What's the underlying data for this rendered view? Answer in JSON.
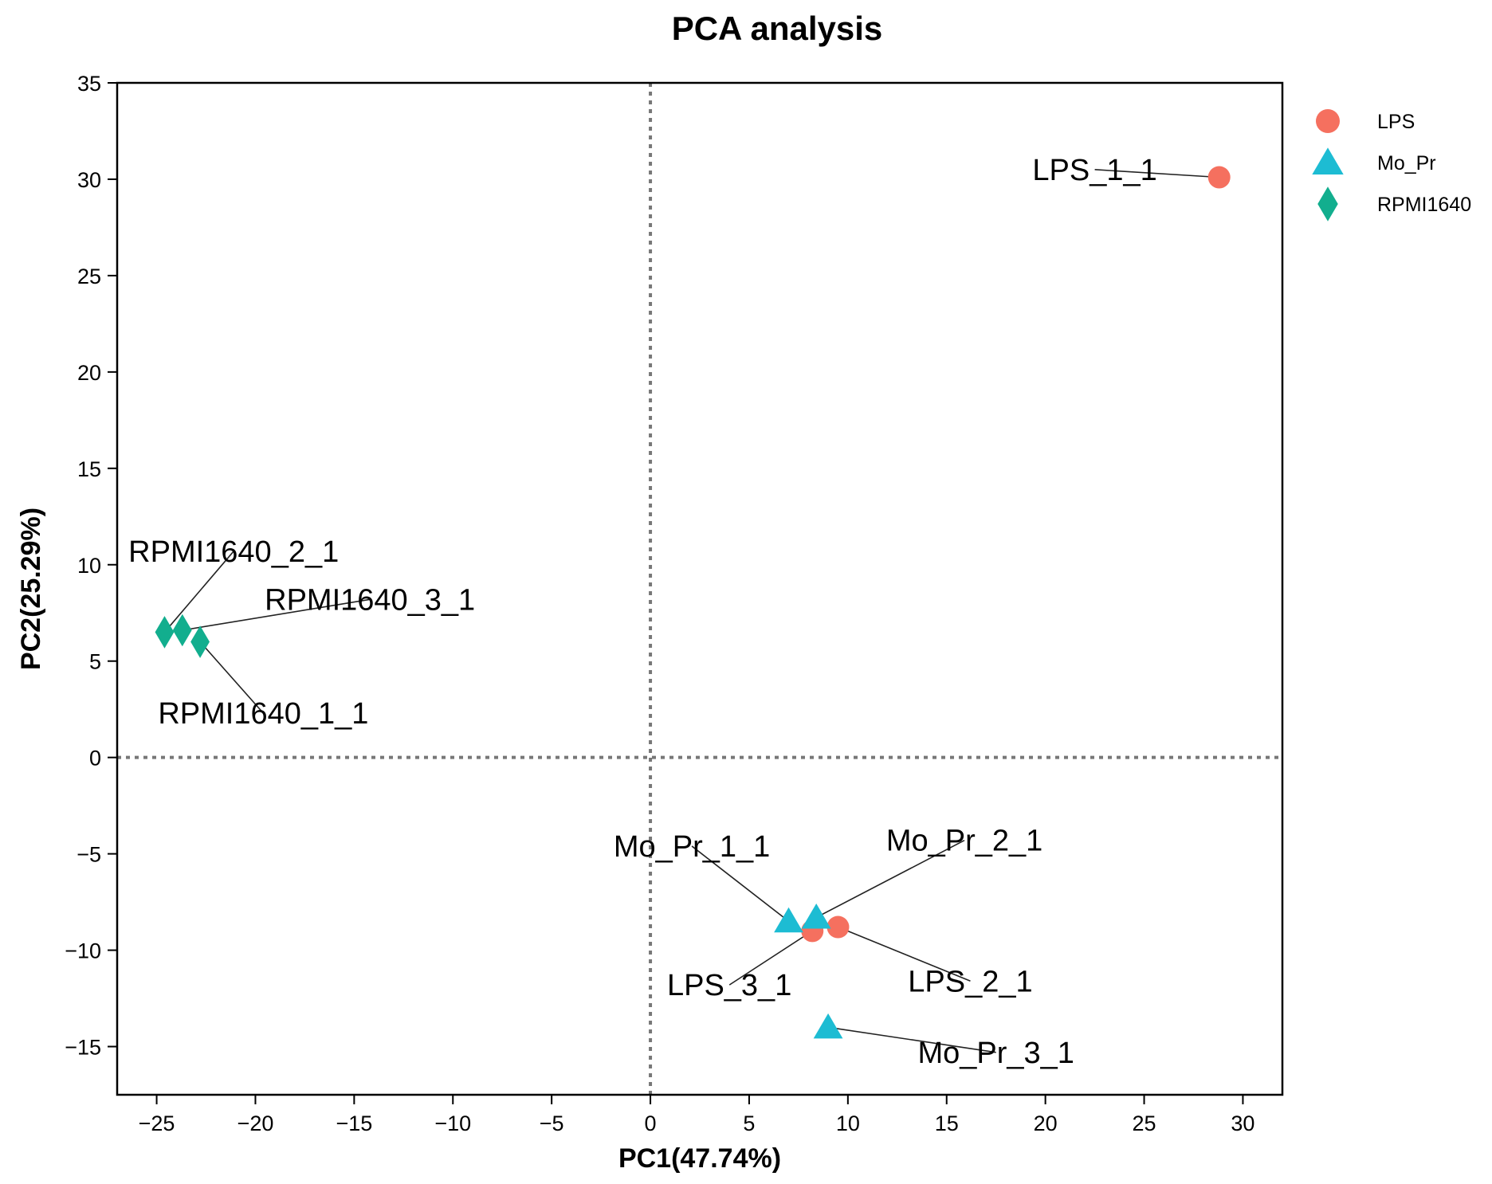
{
  "chart_data": {
    "type": "scatter",
    "title": "PCA analysis",
    "xlabel": "PC1(47.74%)",
    "ylabel": "PC2(25.29%)",
    "xlim": [
      -27,
      32
    ],
    "ylim": [
      -17.5,
      35
    ],
    "xticks": [
      -25,
      -20,
      -15,
      -10,
      -5,
      0,
      5,
      10,
      15,
      20,
      25,
      30
    ],
    "yticks": [
      -15,
      -10,
      -5,
      0,
      5,
      10,
      15,
      20,
      25,
      30,
      35
    ],
    "xtick_labels": [
      "−25",
      "−20",
      "−15",
      "−10",
      "−5",
      "0",
      "5",
      "10",
      "15",
      "20",
      "25",
      "30"
    ],
    "ytick_labels": [
      "−15",
      "−10",
      "−5",
      "0",
      "5",
      "10",
      "15",
      "20",
      "25",
      "30",
      "35"
    ],
    "reference_lines": {
      "x": 0,
      "y": 0,
      "style": "dotted"
    },
    "legend_position": "right",
    "series": [
      {
        "name": "LPS",
        "marker": "circle",
        "color": "#F5705F",
        "points": [
          {
            "label": "LPS_1_1",
            "x": 28.8,
            "y": 30.1,
            "label_x": 22.5,
            "label_y": 30.5
          },
          {
            "label": "LPS_2_1",
            "x": 9.5,
            "y": -8.8,
            "label_x": 16.2,
            "label_y": -11.6
          },
          {
            "label": "LPS_3_1",
            "x": 8.2,
            "y": -9.0,
            "label_x": 4.0,
            "label_y": -11.8
          }
        ]
      },
      {
        "name": "Mo_Pr",
        "marker": "triangle",
        "color": "#1DBCD3",
        "points": [
          {
            "label": "Mo_Pr_1_1",
            "x": 7.0,
            "y": -8.5,
            "label_x": 2.1,
            "label_y": -4.6
          },
          {
            "label": "Mo_Pr_2_1",
            "x": 8.4,
            "y": -8.3,
            "label_x": 15.9,
            "label_y": -4.3
          },
          {
            "label": "Mo_Pr_3_1",
            "x": 9.0,
            "y": -14.0,
            "label_x": 17.5,
            "label_y": -15.3
          }
        ]
      },
      {
        "name": "RPMI1640",
        "marker": "diamond",
        "color": "#12AE8E",
        "points": [
          {
            "label": "RPMI1640_1_1",
            "x": -22.8,
            "y": 6.0,
            "label_x": -19.6,
            "label_y": 2.3
          },
          {
            "label": "RPMI1640_2_1",
            "x": -24.6,
            "y": 6.5,
            "label_x": -21.1,
            "label_y": 10.7
          },
          {
            "label": "RPMI1640_3_1",
            "x": -23.7,
            "y": 6.6,
            "label_x": -14.2,
            "label_y": 8.2
          }
        ]
      }
    ]
  }
}
